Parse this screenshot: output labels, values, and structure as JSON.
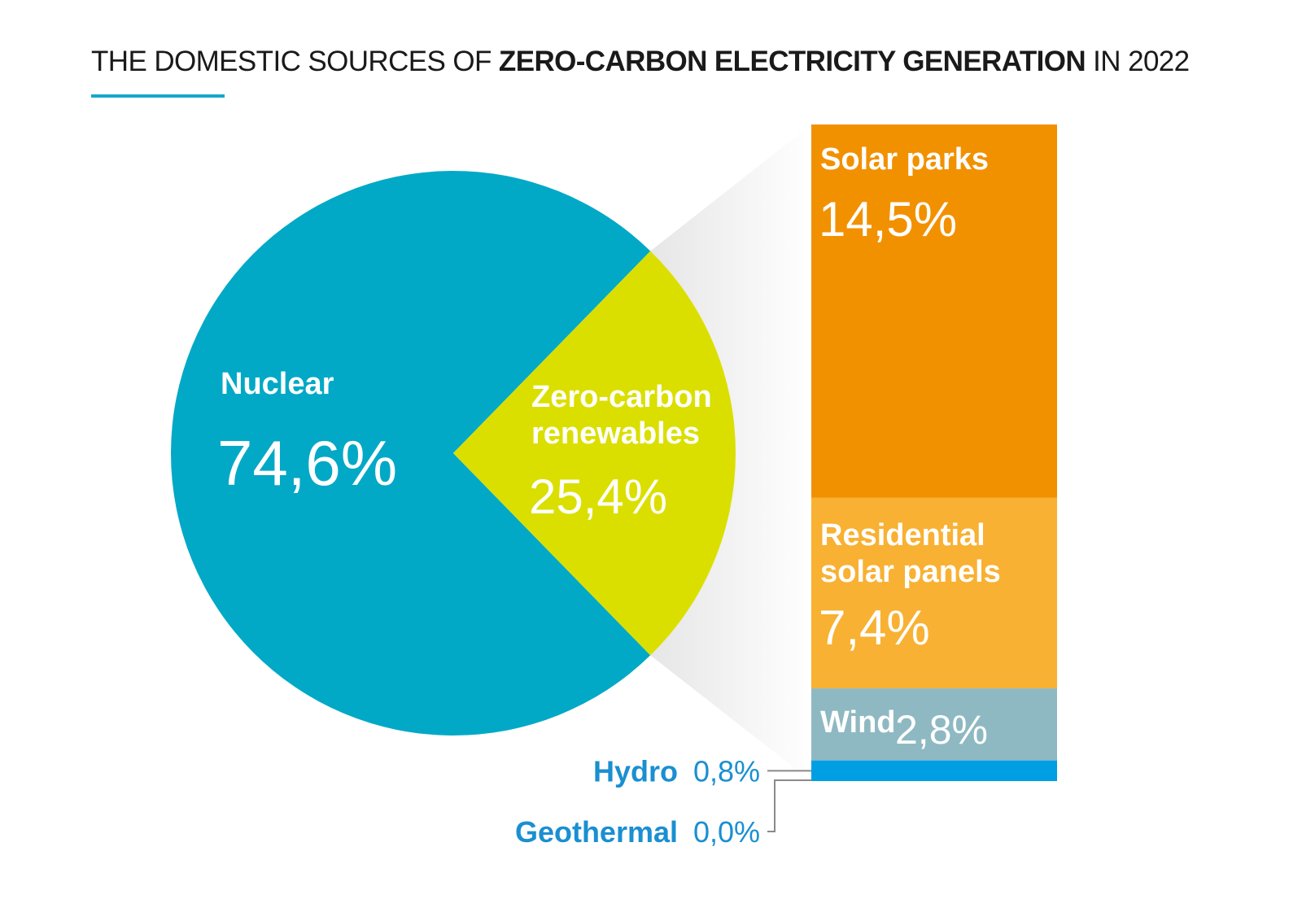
{
  "chart_data": {
    "type": "pie",
    "title": {
      "prefix": "THE DOMESTIC SOURCES OF ",
      "bold": "ZERO-CARBON ELECTRICITY GENERATION",
      "suffix": " IN 2022"
    },
    "pie": {
      "slices": [
        {
          "name": "Nuclear",
          "value": 74.6,
          "label": "74,6%",
          "color": "#02a9c6"
        },
        {
          "name_lines": [
            "Zero-carbon",
            "renewables"
          ],
          "value": 25.4,
          "label": "25,4%",
          "color": "#dbdf00"
        }
      ]
    },
    "breakdown": {
      "type": "stacked-bar",
      "parent": "Zero-carbon renewables",
      "segments": [
        {
          "name": "Solar parks",
          "value": 14.5,
          "label": "14,5%",
          "color": "#f29100"
        },
        {
          "name_lines": [
            "Residential",
            "solar panels"
          ],
          "value": 7.4,
          "label": "7,4%",
          "color": "#f8b133"
        },
        {
          "name": "Wind",
          "value": 2.8,
          "label": "2,8%",
          "color": "#8fb9c2"
        },
        {
          "name": "Hydro",
          "value": 0.8,
          "label": "0,8%",
          "color": "#009fe3"
        },
        {
          "name": "Geothermal",
          "value": 0.0,
          "label": "0,0%",
          "color": "#009fe3"
        }
      ]
    }
  }
}
